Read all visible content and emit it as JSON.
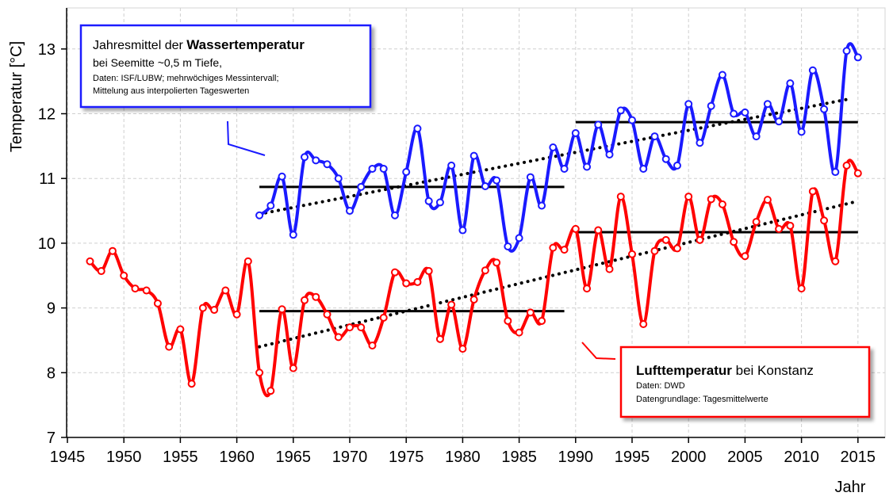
{
  "chart_data": {
    "type": "line",
    "ylabel": "Temperatur [°C]",
    "xlabel": "Jahr",
    "xlim": [
      1945,
      2015
    ],
    "ylim": [
      7,
      13.5
    ],
    "x_ticks": [
      1945,
      1950,
      1955,
      1960,
      1965,
      1970,
      1975,
      1980,
      1985,
      1990,
      1995,
      2000,
      2005,
      2010,
      2015
    ],
    "y_ticks": [
      7,
      8,
      9,
      10,
      11,
      12,
      13
    ],
    "grid": true,
    "colors": {
      "water": "#1a1aff",
      "air": "#ff0000",
      "mean": "#000000",
      "trend": "#000000"
    },
    "series": [
      {
        "key": "water",
        "color": "#1a1aff",
        "x": [
          1962,
          1963,
          1964,
          1965,
          1966,
          1967,
          1968,
          1969,
          1970,
          1971,
          1972,
          1973,
          1974,
          1975,
          1976,
          1977,
          1978,
          1979,
          1980,
          1981,
          1982,
          1983,
          1984,
          1985,
          1986,
          1987,
          1988,
          1989,
          1990,
          1991,
          1992,
          1993,
          1994,
          1995,
          1996,
          1997,
          1998,
          1999,
          2000,
          2001,
          2002,
          2003,
          2004,
          2005,
          2006,
          2007,
          2008,
          2009,
          2010,
          2011,
          2012,
          2013,
          2014,
          2015
        ],
        "values": [
          10.43,
          10.58,
          11.03,
          10.13,
          11.33,
          11.28,
          11.22,
          11.0,
          10.5,
          10.87,
          11.15,
          11.15,
          10.43,
          11.1,
          11.77,
          10.65,
          10.63,
          11.2,
          10.2,
          11.35,
          10.88,
          10.97,
          9.95,
          10.08,
          11.02,
          10.58,
          11.48,
          11.15,
          11.7,
          11.18,
          11.83,
          11.37,
          12.05,
          11.9,
          11.15,
          11.65,
          11.3,
          11.2,
          12.15,
          11.55,
          12.12,
          12.6,
          12.0,
          12.02,
          11.65,
          12.15,
          11.88,
          12.47,
          11.72,
          12.67,
          12.07,
          11.1,
          12.97,
          12.87
        ]
      },
      {
        "key": "air",
        "color": "#ff0000",
        "x": [
          1947,
          1948,
          1949,
          1950,
          1951,
          1952,
          1953,
          1954,
          1955,
          1956,
          1957,
          1958,
          1959,
          1960,
          1961,
          1962,
          1963,
          1964,
          1965,
          1966,
          1967,
          1968,
          1969,
          1970,
          1971,
          1972,
          1973,
          1974,
          1975,
          1976,
          1977,
          1978,
          1979,
          1980,
          1981,
          1982,
          1983,
          1984,
          1985,
          1986,
          1987,
          1988,
          1989,
          1990,
          1991,
          1992,
          1993,
          1994,
          1995,
          1996,
          1997,
          1998,
          1999,
          2000,
          2001,
          2002,
          2003,
          2004,
          2005,
          2006,
          2007,
          2008,
          2009,
          2010,
          2011,
          2012,
          2013,
          2014,
          2015
        ],
        "values": [
          9.72,
          9.57,
          9.88,
          9.5,
          9.3,
          9.27,
          9.07,
          8.4,
          8.67,
          7.83,
          9.0,
          8.97,
          9.27,
          8.9,
          9.72,
          8.0,
          7.72,
          8.98,
          8.07,
          9.12,
          9.17,
          8.9,
          8.55,
          8.7,
          8.7,
          8.42,
          8.85,
          9.55,
          9.38,
          9.4,
          9.57,
          8.52,
          9.05,
          8.37,
          9.13,
          9.58,
          9.7,
          8.8,
          8.62,
          8.93,
          8.8,
          9.93,
          9.9,
          10.22,
          9.3,
          10.2,
          9.6,
          10.72,
          9.83,
          8.75,
          9.88,
          10.05,
          9.92,
          10.72,
          10.05,
          10.68,
          10.6,
          10.02,
          9.8,
          10.33,
          10.67,
          10.22,
          10.27,
          9.3,
          10.8,
          10.35,
          9.72,
          11.2,
          11.08
        ]
      }
    ],
    "mean_lines": [
      {
        "series": "water",
        "x": [
          1962,
          1989
        ],
        "value": 10.87
      },
      {
        "series": "water",
        "x": [
          1990,
          2015
        ],
        "value": 11.87
      },
      {
        "series": "air",
        "x": [
          1962,
          1989
        ],
        "value": 8.95
      },
      {
        "series": "air",
        "x": [
          1990,
          2015
        ],
        "value": 10.17
      }
    ],
    "trend_lines": [
      {
        "series": "water",
        "x": [
          1962,
          2014
        ],
        "values": [
          10.45,
          12.22
        ]
      },
      {
        "series": "air",
        "x": [
          1962,
          2015
        ],
        "values": [
          8.4,
          10.65
        ]
      }
    ],
    "annotations": [
      {
        "key": "water",
        "border_color": "#1a1aff",
        "title_plain": "Jahresmittel der ",
        "title_bold": "Wassertemperatur",
        "subtitle": "bei Seemitte ~0,5 m Tiefe,",
        "lines": [
          "Daten: ISF/LUBW; mehrwöchiges Messintervall;",
          "Mittelung aus interpolierten Tageswerten"
        ]
      },
      {
        "key": "air",
        "border_color": "#ff0000",
        "title_bold": "Lufttemperatur",
        "title_plain": " bei Konstanz",
        "lines": [
          "Daten: DWD",
          "Datengrundlage: Tagesmittelwerte"
        ]
      }
    ]
  }
}
